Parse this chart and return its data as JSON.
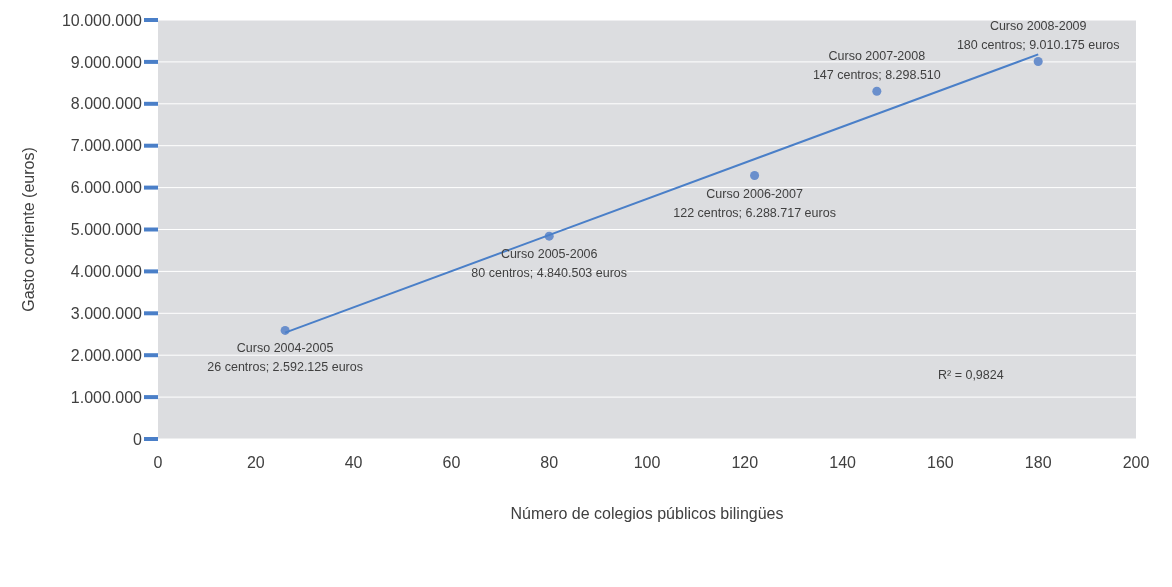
{
  "chart_data": {
    "type": "scatter",
    "xlabel": "Número de colegios públicos bilingües",
    "ylabel": "Gasto corriente (euros)",
    "xlim": [
      0,
      200
    ],
    "xticks": [
      0,
      20,
      40,
      60,
      80,
      100,
      120,
      140,
      160,
      180,
      200
    ],
    "ylim": [
      0,
      10000000
    ],
    "yticks": [
      {
        "value": 0,
        "label": "0"
      },
      {
        "value": 1000000,
        "label": "1.000.000"
      },
      {
        "value": 2000000,
        "label": "2.000.000"
      },
      {
        "value": 3000000,
        "label": "3.000.000"
      },
      {
        "value": 4000000,
        "label": "4.000.000"
      },
      {
        "value": 5000000,
        "label": "5.000.000"
      },
      {
        "value": 6000000,
        "label": "6.000.000"
      },
      {
        "value": 7000000,
        "label": "7.000.000"
      },
      {
        "value": 8000000,
        "label": "8.000.000"
      },
      {
        "value": 9000000,
        "label": "9.000.000"
      },
      {
        "value": 10000000,
        "label": "10.000.000"
      }
    ],
    "grid": "y",
    "series": [
      {
        "type": "scatter",
        "marker": "circle",
        "color": "#6a8fcc",
        "x": [
          26,
          80,
          122,
          147,
          180
        ],
        "values": [
          2592125,
          4840503,
          6288717,
          8298510,
          9010175
        ]
      },
      {
        "type": "line",
        "marker": "none",
        "color": "#4a7fc8",
        "x": [
          26,
          180
        ],
        "values": [
          2540000,
          9180000
        ]
      }
    ],
    "annotations": [
      {
        "text": "Curso 2004-2005\n26 centros;  2.592.125 euros",
        "x": 26,
        "y": 2592125
      },
      {
        "text": "Curso 2005-2006\n80 centros;  4.840.503 euros",
        "x": 80,
        "y": 4840503
      },
      {
        "text": "Curso 2006-2007\n122 centros;  6.288.717 euros",
        "x": 122,
        "y": 6288717
      },
      {
        "text": "Curso 2007-2008\n147 centros;  8.298.510",
        "x": 147,
        "y": 8298510
      },
      {
        "text": "Curso 2008-2009\n180 centros;  9.010.175 euros",
        "x": 180,
        "y": 9010175
      },
      "R² = 0,9824"
    ]
  }
}
